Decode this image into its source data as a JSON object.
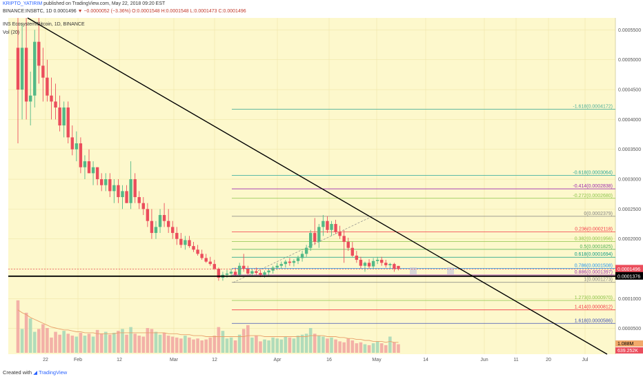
{
  "header": {
    "author": "KRIPTO_YATIRIM",
    "published": "published on TradingView.com, May 22, 2018 09:20 EST",
    "symbol_line": "BINANCE:INSBTC, 1D",
    "price": "0.0001496",
    "change_arrow": "▼",
    "change": "−0.0000052 (−3.36%)",
    "o": "O:0.0001548",
    "h": "H:0.0001548",
    "l": "L:0.0001473",
    "c": "C:0.0001496"
  },
  "legend": {
    "series": "INS Ecosystem/Bitcoin, 1D, BINANCE",
    "volume": "Vol (20)"
  },
  "footer": {
    "created_with": "Created with",
    "brand": "TradingView"
  },
  "chart_data": {
    "type": "candlestick",
    "colors": {
      "background": "#fdf8cc",
      "up": "#53b987",
      "down": "#eb4d5c",
      "trendline": "#000000",
      "current_price": "#eb4d5c"
    },
    "x_axis": {
      "ticks": [
        "22",
        "Feb",
        "12",
        "Mar",
        "12",
        "Apr",
        "16",
        "May",
        "14",
        "Jun",
        "11",
        "20",
        "Jul"
      ]
    },
    "y_axis": {
      "ticks": [
        "0.0000500",
        "0.0001000",
        "0.0001500",
        "0.0002000",
        "0.0002500",
        "0.0003000",
        "0.0003500",
        "0.0004000",
        "0.0004500",
        "0.0005000",
        "0.0005500"
      ],
      "range": [
        7e-06,
        0.00057
      ]
    },
    "price_labels": {
      "current": "0.0001496",
      "support": "0.0001376"
    },
    "fib_levels": [
      {
        "label": "-1.618(0.0004172)",
        "value": 0.0004172,
        "color": "#4caf9a"
      },
      {
        "label": "-0.618(0.0003064)",
        "value": 0.0003064,
        "color": "#26a69a"
      },
      {
        "label": "-0.414(0.0002838)",
        "value": 0.0002838,
        "color": "#9c27b0"
      },
      {
        "label": "-0.272(0.0002680)",
        "value": 0.000268,
        "color": "#8bc34a"
      },
      {
        "label": "0(0.0002379)",
        "value": 0.0002379,
        "color": "#808080"
      },
      {
        "label": "0.236(0.0002118)",
        "value": 0.0002118,
        "color": "#f23645"
      },
      {
        "label": "0.382(0.0001956)",
        "value": 0.0001956,
        "color": "#8bc34a"
      },
      {
        "label": "0.5(0.0001825)",
        "value": 0.0001825,
        "color": "#4caf50"
      },
      {
        "label": "0.618(0.0001694)",
        "value": 0.0001694,
        "color": "#089981"
      },
      {
        "label": "0.786(0.0001508)",
        "value": 0.0001508,
        "color": "#2196f3"
      },
      {
        "label": "0.886(0.0001397)",
        "value": 0.0001397,
        "color": "#9c27b0"
      },
      {
        "label": "1(0.0001273)",
        "value": 0.0001273,
        "color": "#808080"
      },
      {
        "label": "1.273(0.0000970)",
        "value": 9.7e-05,
        "color": "#8bc34a"
      },
      {
        "label": "1.414(0.0000812)",
        "value": 8.12e-05,
        "color": "#f23645"
      },
      {
        "label": "1.618(0.0000586)",
        "value": 5.86e-05,
        "color": "#3f51b5"
      }
    ],
    "volume_labels": [
      "1.088M",
      "639.252K"
    ],
    "candles": [
      {
        "o": 0.00052,
        "h": 0.00057,
        "l": 0.00036,
        "c": 0.00045
      },
      {
        "o": 0.00045,
        "h": 0.00056,
        "l": 0.0004,
        "c": 0.00052
      },
      {
        "o": 0.00052,
        "h": 0.00057,
        "l": 0.0004,
        "c": 0.00043
      },
      {
        "o": 0.00043,
        "h": 0.00048,
        "l": 0.00039,
        "c": 0.00044
      },
      {
        "o": 0.00044,
        "h": 0.00055,
        "l": 0.00042,
        "c": 0.00053
      },
      {
        "o": 0.00053,
        "h": 0.00057,
        "l": 0.00046,
        "c": 0.00049
      },
      {
        "o": 0.00049,
        "h": 0.00052,
        "l": 0.00043,
        "c": 0.00047
      },
      {
        "o": 0.00047,
        "h": 0.0005,
        "l": 0.00043,
        "c": 0.00044
      },
      {
        "o": 0.00044,
        "h": 0.00047,
        "l": 0.0004,
        "c": 0.00043
      },
      {
        "o": 0.00043,
        "h": 0.00046,
        "l": 0.0004,
        "c": 0.00042
      },
      {
        "o": 0.00042,
        "h": 0.00044,
        "l": 0.00038,
        "c": 0.00039
      },
      {
        "o": 0.00039,
        "h": 0.00043,
        "l": 0.00037,
        "c": 0.00042
      },
      {
        "o": 0.00042,
        "h": 0.00043,
        "l": 0.00036,
        "c": 0.00037
      },
      {
        "o": 0.00037,
        "h": 0.00039,
        "l": 0.00034,
        "c": 0.00035
      },
      {
        "o": 0.00035,
        "h": 0.00038,
        "l": 0.00033,
        "c": 0.00036
      },
      {
        "o": 0.00036,
        "h": 0.00037,
        "l": 0.00031,
        "c": 0.00032
      },
      {
        "o": 0.00032,
        "h": 0.00034,
        "l": 0.0003,
        "c": 0.00033
      },
      {
        "o": 0.00033,
        "h": 0.00035,
        "l": 0.00031,
        "c": 0.00031
      },
      {
        "o": 0.00031,
        "h": 0.00033,
        "l": 0.00029,
        "c": 0.00032
      },
      {
        "o": 0.00032,
        "h": 0.00032,
        "l": 0.00029,
        "c": 0.0003
      },
      {
        "o": 0.0003,
        "h": 0.00031,
        "l": 0.00028,
        "c": 0.00029
      },
      {
        "o": 0.00029,
        "h": 0.00031,
        "l": 0.00028,
        "c": 0.0003
      },
      {
        "o": 0.0003,
        "h": 0.00031,
        "l": 0.00027,
        "c": 0.00028
      },
      {
        "o": 0.00028,
        "h": 0.0003,
        "l": 0.00026,
        "c": 0.00029
      },
      {
        "o": 0.00029,
        "h": 0.0003,
        "l": 0.00026,
        "c": 0.00027
      },
      {
        "o": 0.00027,
        "h": 0.00029,
        "l": 0.00025,
        "c": 0.00028
      },
      {
        "o": 0.00028,
        "h": 0.00029,
        "l": 0.00026,
        "c": 0.00026
      },
      {
        "o": 0.00026,
        "h": 0.00033,
        "l": 0.00025,
        "c": 0.0003
      },
      {
        "o": 0.0003,
        "h": 0.00031,
        "l": 0.00026,
        "c": 0.00027
      },
      {
        "o": 0.00027,
        "h": 0.00028,
        "l": 0.00025,
        "c": 0.00026
      },
      {
        "o": 0.00026,
        "h": 0.00027,
        "l": 0.00024,
        "c": 0.00025
      },
      {
        "o": 0.00025,
        "h": 0.00026,
        "l": 0.00022,
        "c": 0.00023
      },
      {
        "o": 0.00023,
        "h": 0.00025,
        "l": 0.0002,
        "c": 0.00021
      },
      {
        "o": 0.00021,
        "h": 0.00023,
        "l": 0.0002,
        "c": 0.00022
      },
      {
        "o": 0.00022,
        "h": 0.00025,
        "l": 0.00021,
        "c": 0.00024
      },
      {
        "o": 0.00024,
        "h": 0.00026,
        "l": 0.00022,
        "c": 0.00023
      },
      {
        "o": 0.00023,
        "h": 0.00025,
        "l": 0.00021,
        "c": 0.00022
      },
      {
        "o": 0.00022,
        "h": 0.00023,
        "l": 0.0002,
        "c": 0.00021
      },
      {
        "o": 0.00021,
        "h": 0.00022,
        "l": 0.00019,
        "c": 0.0002
      },
      {
        "o": 0.0002,
        "h": 0.00021,
        "l": 0.000185,
        "c": 0.00019
      },
      {
        "o": 0.00019,
        "h": 0.000205,
        "l": 0.000182,
        "c": 0.000198
      },
      {
        "o": 0.000198,
        "h": 0.000205,
        "l": 0.000185,
        "c": 0.000188
      },
      {
        "o": 0.000188,
        "h": 0.000195,
        "l": 0.000178,
        "c": 0.000182
      },
      {
        "o": 0.000182,
        "h": 0.00019,
        "l": 0.000172,
        "c": 0.000175
      },
      {
        "o": 0.000175,
        "h": 0.000182,
        "l": 0.000165,
        "c": 0.000168
      },
      {
        "o": 0.000168,
        "h": 0.000175,
        "l": 0.00016,
        "c": 0.000162
      },
      {
        "o": 0.000162,
        "h": 0.00017,
        "l": 0.000155,
        "c": 0.000158
      },
      {
        "o": 0.000158,
        "h": 0.000165,
        "l": 0.000148,
        "c": 0.00015
      },
      {
        "o": 0.00015,
        "h": 0.000152,
        "l": 0.00013,
        "c": 0.000135
      },
      {
        "o": 0.000135,
        "h": 0.000145,
        "l": 0.00013,
        "c": 0.00014
      },
      {
        "o": 0.00014,
        "h": 0.000148,
        "l": 0.000135,
        "c": 0.000142
      },
      {
        "o": 0.000142,
        "h": 0.00015,
        "l": 0.000136,
        "c": 0.000145
      },
      {
        "o": 0.000145,
        "h": 0.000152,
        "l": 0.000138,
        "c": 0.00014
      },
      {
        "o": 0.00014,
        "h": 0.00016,
        "l": 0.000138,
        "c": 0.000155
      },
      {
        "o": 0.000155,
        "h": 0.000175,
        "l": 0.000145,
        "c": 0.00015
      },
      {
        "o": 0.00015,
        "h": 0.000155,
        "l": 0.00014,
        "c": 0.000142
      },
      {
        "o": 0.000142,
        "h": 0.00015,
        "l": 0.000137,
        "c": 0.000146
      },
      {
        "o": 0.000146,
        "h": 0.000152,
        "l": 0.00014,
        "c": 0.000143
      },
      {
        "o": 0.000143,
        "h": 0.000148,
        "l": 0.000136,
        "c": 0.00014
      },
      {
        "o": 0.00014,
        "h": 0.000147,
        "l": 0.000135,
        "c": 0.000144
      },
      {
        "o": 0.000144,
        "h": 0.00015,
        "l": 0.000138,
        "c": 0.000147
      },
      {
        "o": 0.000147,
        "h": 0.000155,
        "l": 0.000142,
        "c": 0.000152
      },
      {
        "o": 0.000152,
        "h": 0.00016,
        "l": 0.000148,
        "c": 0.000155
      },
      {
        "o": 0.000155,
        "h": 0.000162,
        "l": 0.00015,
        "c": 0.000158
      },
      {
        "o": 0.000158,
        "h": 0.000165,
        "l": 0.000152,
        "c": 0.000162
      },
      {
        "o": 0.000162,
        "h": 0.000168,
        "l": 0.000155,
        "c": 0.00016
      },
      {
        "o": 0.00016,
        "h": 0.000166,
        "l": 0.000154,
        "c": 0.000163
      },
      {
        "o": 0.000163,
        "h": 0.000172,
        "l": 0.000158,
        "c": 0.000168
      },
      {
        "o": 0.000168,
        "h": 0.00018,
        "l": 0.000162,
        "c": 0.000175
      },
      {
        "o": 0.000175,
        "h": 0.00019,
        "l": 0.00017,
        "c": 0.000185
      },
      {
        "o": 0.000185,
        "h": 0.000215,
        "l": 0.00018,
        "c": 0.00021
      },
      {
        "o": 0.00021,
        "h": 0.000235,
        "l": 0.00019,
        "c": 0.000195
      },
      {
        "o": 0.000195,
        "h": 0.000225,
        "l": 0.000185,
        "c": 0.00022
      },
      {
        "o": 0.00022,
        "h": 0.00024,
        "l": 0.000205,
        "c": 0.00023
      },
      {
        "o": 0.00023,
        "h": 0.000238,
        "l": 0.00021,
        "c": 0.000215
      },
      {
        "o": 0.000215,
        "h": 0.00023,
        "l": 0.000205,
        "c": 0.000225
      },
      {
        "o": 0.000225,
        "h": 0.000232,
        "l": 0.000208,
        "c": 0.000212
      },
      {
        "o": 0.000212,
        "h": 0.000222,
        "l": 0.0002,
        "c": 0.000205
      },
      {
        "o": 0.000205,
        "h": 0.000215,
        "l": 0.00016,
        "c": 0.000195
      },
      {
        "o": 0.000195,
        "h": 0.000202,
        "l": 0.00018,
        "c": 0.000185
      },
      {
        "o": 0.000185,
        "h": 0.000195,
        "l": 0.00017,
        "c": 0.000172
      },
      {
        "o": 0.000172,
        "h": 0.00018,
        "l": 0.00016,
        "c": 0.000165
      },
      {
        "o": 0.000165,
        "h": 0.00017,
        "l": 0.00015,
        "c": 0.000155
      },
      {
        "o": 0.000155,
        "h": 0.000162,
        "l": 0.000145,
        "c": 0.00016
      },
      {
        "o": 0.00016,
        "h": 0.000166,
        "l": 0.00015,
        "c": 0.000154
      },
      {
        "o": 0.000154,
        "h": 0.000168,
        "l": 0.00015,
        "c": 0.000163
      },
      {
        "o": 0.000163,
        "h": 0.00017,
        "l": 0.000158,
        "c": 0.000165
      },
      {
        "o": 0.000165,
        "h": 0.00017,
        "l": 0.000155,
        "c": 0.00016
      },
      {
        "o": 0.00016,
        "h": 0.000165,
        "l": 0.000152,
        "c": 0.000156
      },
      {
        "o": 0.000156,
        "h": 0.00016,
        "l": 0.00015,
        "c": 0.000158
      },
      {
        "o": 0.000158,
        "h": 0.00016,
        "l": 0.000145,
        "c": 0.00015
      },
      {
        "o": 0.0001548,
        "h": 0.0001548,
        "l": 0.0001473,
        "c": 0.0001496
      }
    ],
    "volumes": [
      5.5,
      2.5,
      4.2,
      3.6,
      2.2,
      2.5,
      3.0,
      2.6,
      1.6,
      2.2,
      1.9,
      2.3,
      2.0,
      1.8,
      1.7,
      2.1,
      1.8,
      2.0,
      1.7,
      2.4,
      2.0,
      2.2,
      1.9,
      2.1,
      2.3,
      2.5,
      1.9,
      2.7,
      2.0,
      1.8,
      1.7,
      2.6,
      2.5,
      2.2,
      1.9,
      2.1,
      1.8,
      1.7,
      1.6,
      1.5,
      1.8,
      1.6,
      1.4,
      1.5,
      1.3,
      1.4,
      1.6,
      1.8,
      2.7,
      2.3,
      1.5,
      1.6,
      1.3,
      1.9,
      2.5,
      2.9,
      1.6,
      1.8,
      1.2,
      1.4,
      1.3,
      1.6,
      1.5,
      1.4,
      1.7,
      1.6,
      1.5,
      1.8,
      1.9,
      2.0,
      2.6,
      2.0,
      1.8,
      1.7,
      1.5,
      1.6,
      1.4,
      1.2,
      1.1,
      1.5,
      1.3,
      1.0,
      1.1,
      0.9,
      0.8,
      1.0,
      1.2,
      1.0,
      0.8,
      1.7,
      1.1,
      0.9
    ],
    "volume_ma": [
      4.5,
      4.2,
      4.0,
      3.7,
      3.5,
      3.3,
      3.1,
      2.9,
      2.7,
      2.6,
      2.5,
      2.4,
      2.4,
      2.3,
      2.2,
      2.2,
      2.1,
      2.1,
      2.1,
      2.0,
      2.0,
      2.0,
      2.0,
      2.0,
      2.1,
      2.1,
      2.1,
      2.1,
      2.1,
      2.1,
      2.1,
      2.1,
      2.1,
      2.1,
      2.1,
      2.1,
      2.0,
      2.0,
      2.0,
      1.9,
      1.9,
      1.9,
      1.8,
      1.8,
      1.8,
      1.7,
      1.7,
      1.7,
      1.7,
      1.7,
      1.7,
      1.7,
      1.7,
      1.7,
      1.7,
      1.8,
      1.8,
      1.8,
      1.8,
      1.7,
      1.7,
      1.7,
      1.7,
      1.7,
      1.7,
      1.7,
      1.7,
      1.7,
      1.7,
      1.7,
      1.8,
      1.8,
      1.8,
      1.8,
      1.7,
      1.7,
      1.7,
      1.6,
      1.6,
      1.5,
      1.5,
      1.4,
      1.4,
      1.3,
      1.3,
      1.2,
      1.2,
      1.2,
      1.1,
      1.2,
      1.1,
      1.1
    ]
  }
}
